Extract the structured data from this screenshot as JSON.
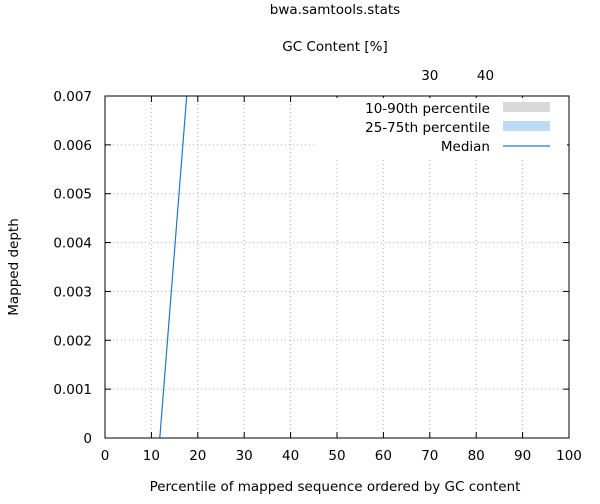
{
  "chart_data": {
    "type": "line",
    "title": "bwa.samtools.stats",
    "xlabel": "Percentile of mapped sequence ordered by GC content",
    "ylabel": "Mapped depth",
    "x2label": "GC Content [%]",
    "xlim": [
      0,
      100
    ],
    "ylim": [
      0,
      0.007
    ],
    "xticks": [
      "0",
      "10",
      "20",
      "30",
      "40",
      "50",
      "60",
      "70",
      "80",
      "90",
      "100"
    ],
    "yticks": [
      "0",
      "0.001",
      "0.002",
      "0.003",
      "0.004",
      "0.005",
      "0.006",
      "0.007"
    ],
    "x2ticks": [
      {
        "label": "30",
        "at": 70
      },
      {
        "label": "40",
        "at": 82
      }
    ],
    "grid": true,
    "legend_position": "top-right",
    "legend": [
      {
        "label": "10-90th percentile",
        "kind": "band",
        "color": "#d9d9d9"
      },
      {
        "label": "25-75th percentile",
        "kind": "band",
        "color": "#bcdcf5"
      },
      {
        "label": "Median",
        "kind": "line",
        "color": "#1f77d0"
      }
    ],
    "series": [
      {
        "name": "Median",
        "color": "#1f77d0",
        "x": [
          11.8,
          17.6
        ],
        "y": [
          0,
          0.007
        ]
      }
    ]
  }
}
